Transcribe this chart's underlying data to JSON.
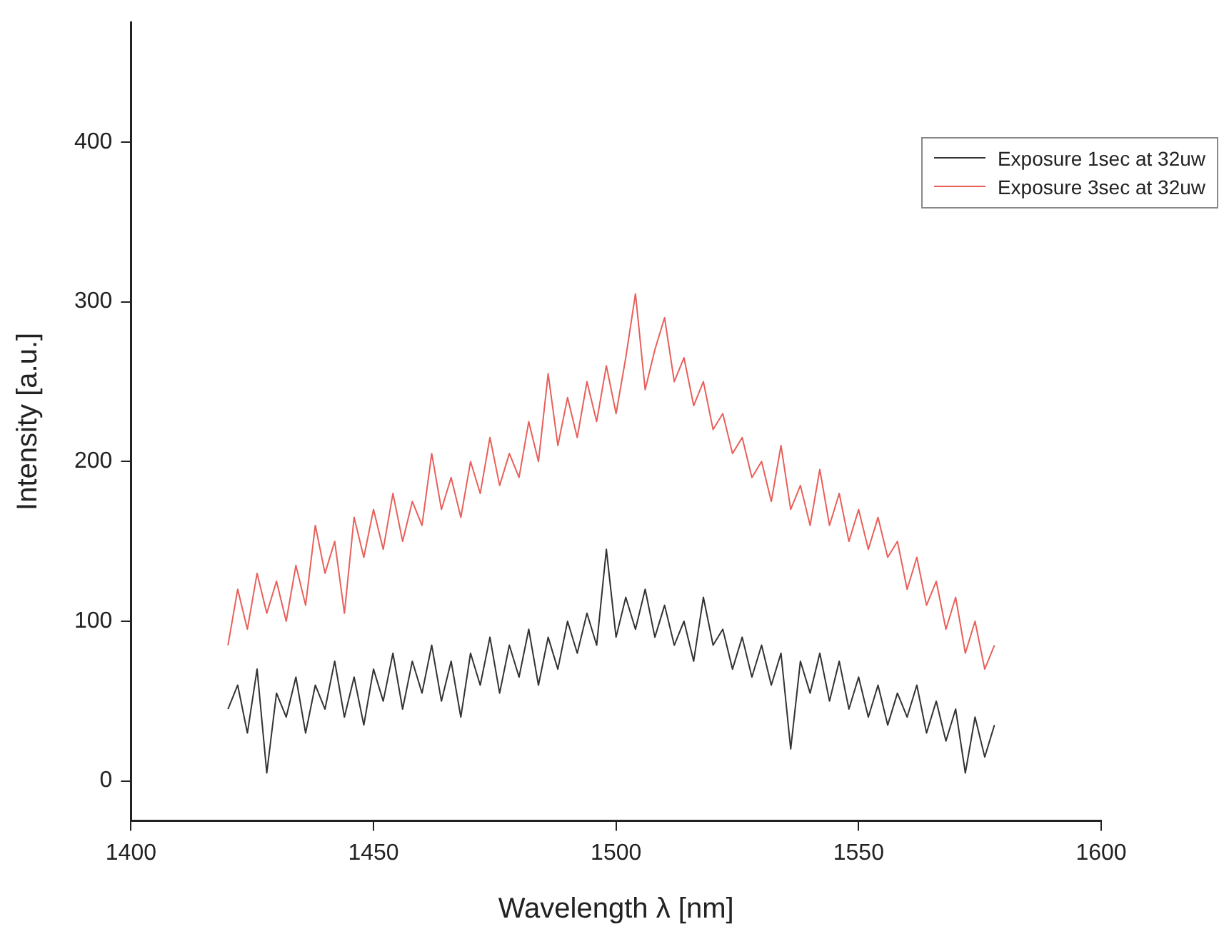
{
  "chart_data": {
    "type": "line",
    "xlabel": "Wavelength λ [nm]",
    "ylabel": "Intensity [a.u.]",
    "xlim": [
      1400,
      1600
    ],
    "xticks": [
      1400,
      1450,
      1500,
      1550,
      1600
    ],
    "ylim": [
      -25,
      475
    ],
    "yticks": [
      0,
      100,
      200,
      300,
      400
    ],
    "grid": false,
    "legend": "top right",
    "marker": "none",
    "line_style": "solid",
    "x": [
      1420,
      1422,
      1424,
      1426,
      1428,
      1430,
      1432,
      1434,
      1436,
      1438,
      1440,
      1442,
      1444,
      1446,
      1448,
      1450,
      1452,
      1454,
      1456,
      1458,
      1460,
      1462,
      1464,
      1466,
      1468,
      1470,
      1472,
      1474,
      1476,
      1478,
      1480,
      1482,
      1484,
      1486,
      1488,
      1490,
      1492,
      1494,
      1496,
      1498,
      1500,
      1502,
      1504,
      1506,
      1508,
      1510,
      1512,
      1514,
      1516,
      1518,
      1520,
      1522,
      1524,
      1526,
      1528,
      1530,
      1532,
      1534,
      1536,
      1538,
      1540,
      1542,
      1544,
      1546,
      1548,
      1550,
      1552,
      1554,
      1556,
      1558,
      1560,
      1562,
      1564,
      1566,
      1568,
      1570,
      1572,
      1574,
      1576,
      1578
    ],
    "series": [
      {
        "name": "Exposure 1sec at 32uw",
        "color": "#333333",
        "values": [
          45,
          60,
          30,
          70,
          5,
          55,
          40,
          65,
          30,
          60,
          45,
          75,
          40,
          65,
          35,
          70,
          50,
          80,
          45,
          75,
          55,
          85,
          50,
          75,
          40,
          80,
          60,
          90,
          55,
          85,
          65,
          95,
          60,
          90,
          70,
          100,
          80,
          105,
          85,
          145,
          90,
          115,
          95,
          120,
          90,
          110,
          85,
          100,
          75,
          115,
          85,
          95,
          70,
          90,
          65,
          85,
          60,
          80,
          20,
          75,
          55,
          80,
          50,
          75,
          45,
          65,
          40,
          60,
          35,
          55,
          40,
          60,
          30,
          50,
          25,
          45,
          5,
          40,
          15,
          35
        ]
      },
      {
        "name": "Exposure 3sec at 32uw",
        "color": "#e8605a",
        "values": [
          85,
          120,
          95,
          130,
          105,
          125,
          100,
          135,
          110,
          160,
          130,
          150,
          105,
          165,
          140,
          170,
          145,
          180,
          150,
          175,
          160,
          205,
          170,
          190,
          165,
          200,
          180,
          215,
          185,
          205,
          190,
          225,
          200,
          255,
          210,
          240,
          215,
          250,
          225,
          260,
          230,
          265,
          305,
          245,
          270,
          290,
          250,
          265,
          235,
          250,
          220,
          230,
          205,
          215,
          190,
          200,
          175,
          210,
          170,
          185,
          160,
          195,
          160,
          180,
          150,
          170,
          145,
          165,
          140,
          150,
          120,
          140,
          110,
          125,
          95,
          115,
          80,
          100,
          70,
          85
        ]
      }
    ]
  }
}
